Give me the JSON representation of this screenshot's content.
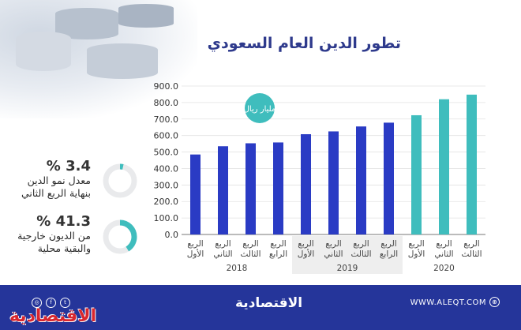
{
  "title": "تطور الدين العام السعودي",
  "brand": "الاقتصادية",
  "website": "WWW.ALEQT.COM",
  "stats": [
    {
      "value": "3.4 %",
      "label_line1": "معدل نمو الدين",
      "label_line2": "بنهاية الربع الثاني",
      "fraction": 0.034
    },
    {
      "value": "41.3 %",
      "label_line1": "من الديون خارجية",
      "label_line2": "والبقية محلية",
      "fraction": 0.413
    }
  ],
  "colors": {
    "navy": "#2a3bc4",
    "teal": "#3fbdbd",
    "footer": "#25359a",
    "ring_bg": "#e9eaec"
  },
  "icons": [
    "instagram-icon",
    "facebook-icon",
    "twitter-icon",
    "globe-icon"
  ],
  "chart_data": {
    "type": "bar",
    "unit_label": "مليار ريال",
    "ylim": [
      0,
      900
    ],
    "yticks": [
      "0.0",
      "100.0",
      "200.0",
      "300.0",
      "400.0",
      "500.0",
      "600.0",
      "700.0",
      "800.0",
      "900.0"
    ],
    "grid": true,
    "categories": [
      [
        "الربع",
        "الأول"
      ],
      [
        "الربع",
        "الثاني"
      ],
      [
        "الربع",
        "الثالث"
      ],
      [
        "الربع",
        "الرابع"
      ],
      [
        "الربع",
        "الأول"
      ],
      [
        "الربع",
        "الثاني"
      ],
      [
        "الربع",
        "الثالث"
      ],
      [
        "الربع",
        "الرابع"
      ],
      [
        "الربع",
        "الأول"
      ],
      [
        "الربع",
        "الثاني"
      ],
      [
        "الربع",
        "الثالث"
      ]
    ],
    "years": [
      {
        "label": "2018",
        "start": 0,
        "end": 3
      },
      {
        "label": "2019",
        "start": 4,
        "end": 7
      },
      {
        "label": "2020",
        "start": 8,
        "end": 10
      }
    ],
    "values": [
      485,
      535,
      553,
      558,
      608,
      625,
      655,
      678,
      723,
      820,
      848
    ],
    "bar_colors": [
      "navy",
      "navy",
      "navy",
      "navy",
      "navy",
      "navy",
      "navy",
      "navy",
      "teal",
      "teal",
      "teal"
    ]
  }
}
